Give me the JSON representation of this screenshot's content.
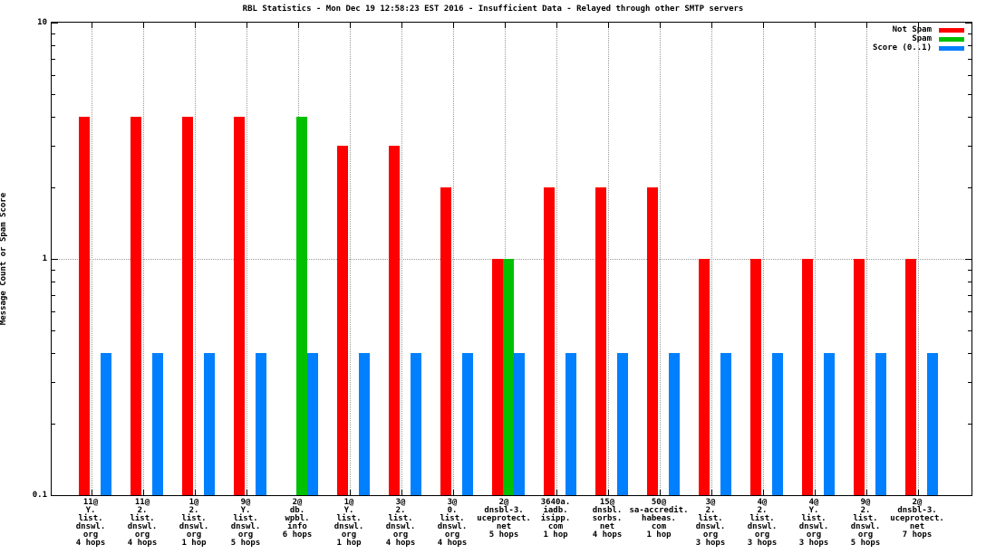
{
  "title": "RBL Statistics - Mon Dec 19 12:58:23 EST 2016 - Insufficient Data - Relayed through other SMTP servers",
  "legend": [
    {
      "label": "Not Spam",
      "color": "#ff0000"
    },
    {
      "label": "Spam",
      "color": "#00c000"
    },
    {
      "label": "Score (0..1)",
      "color": "#0080ff"
    }
  ],
  "colors": {
    "not_spam": "#ff0000",
    "spam": "#00c000",
    "score": "#0080ff",
    "grid": "#9a9a9a",
    "axis": "#000000",
    "background": "#ffffff"
  },
  "chart_data": {
    "type": "bar",
    "title": "RBL Statistics - Mon Dec 19 12:58:23 EST 2016 - Insufficient Data - Relayed through other SMTP servers",
    "xlabel": "",
    "ylabel": "Message Count or Spam Score",
    "y_scale": "log",
    "ylim": [
      0.1,
      10
    ],
    "grid": true,
    "legend_position": "top-right",
    "yticks": [
      {
        "label": "10",
        "value": 10
      },
      {
        "label": "1",
        "value": 1
      },
      {
        "label": "0.1",
        "value": 0.1
      }
    ],
    "categories": [
      [
        "11@",
        "Y.",
        "list.",
        "dnswl.",
        "org",
        "4 hops"
      ],
      [
        "11@",
        "2.",
        "list.",
        "dnswl.",
        "org",
        "4 hops"
      ],
      [
        "1@",
        "2.",
        "list.",
        "dnswl.",
        "org",
        "1 hop"
      ],
      [
        "9@",
        "Y.",
        "list.",
        "dnswl.",
        "org",
        "5 hops"
      ],
      [
        "2@",
        "db.",
        "wpbl.",
        "info",
        "6 hops"
      ],
      [
        "1@",
        "Y.",
        "list.",
        "dnswl.",
        "org",
        "1 hop"
      ],
      [
        "3@",
        "2.",
        "list.",
        "dnswl.",
        "org",
        "4 hops"
      ],
      [
        "3@",
        "0.",
        "list.",
        "dnswl.",
        "org",
        "4 hops"
      ],
      [
        "2@",
        "dnsbl-3.",
        "uceprotect.",
        "net",
        "5 hops"
      ],
      [
        "3640a.",
        "iadb.",
        "isipp.",
        "com",
        "1 hop"
      ],
      [
        "15@",
        "dnsbl.",
        "sorbs.",
        "net",
        "4 hops"
      ],
      [
        "50@",
        "sa-accredit.",
        "habeas.",
        "com",
        "1 hop"
      ],
      [
        "3@",
        "2.",
        "list.",
        "dnswl.",
        "org",
        "3 hops"
      ],
      [
        "4@",
        "2.",
        "list.",
        "dnswl.",
        "org",
        "3 hops"
      ],
      [
        "4@",
        "Y.",
        "list.",
        "dnswl.",
        "org",
        "3 hops"
      ],
      [
        "9@",
        "2.",
        "list.",
        "dnswl.",
        "org",
        "5 hops"
      ],
      [
        "2@",
        "dnsbl-3.",
        "uceprotect.",
        "net",
        "7 hops"
      ]
    ],
    "series": [
      {
        "name": "Not Spam",
        "color": "#ff0000",
        "values": [
          4,
          4,
          4,
          4,
          0,
          3,
          3,
          2,
          1,
          2,
          2,
          2,
          1,
          1,
          1,
          1,
          1
        ]
      },
      {
        "name": "Spam",
        "color": "#00c000",
        "values": [
          0,
          0,
          0,
          0,
          4,
          0,
          0,
          0,
          1,
          0,
          0,
          0,
          0,
          0,
          0,
          0,
          0
        ]
      },
      {
        "name": "Score (0..1)",
        "color": "#0080ff",
        "values": [
          0.4,
          0.4,
          0.4,
          0.4,
          0.4,
          0.4,
          0.4,
          0.4,
          0.4,
          0.4,
          0.4,
          0.4,
          0.4,
          0.4,
          0.4,
          0.4,
          0.4
        ]
      }
    ]
  }
}
